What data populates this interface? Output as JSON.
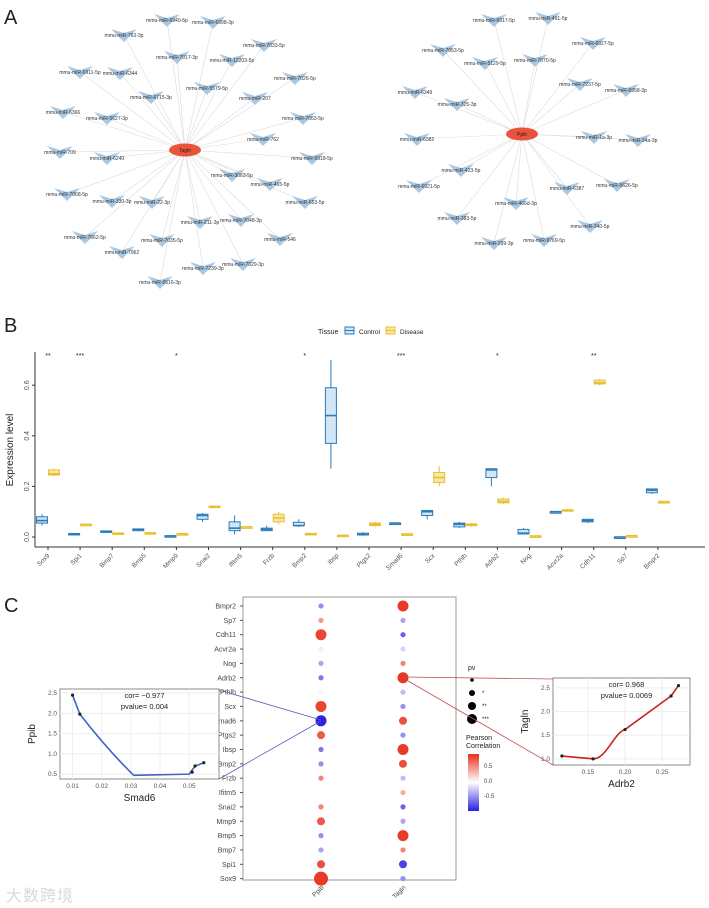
{
  "panels": {
    "a": "A",
    "b": "B",
    "c": "C"
  },
  "watermark": "大数跨境",
  "network_left": {
    "center": "Tagln",
    "targets": [
      "mmu-miR-6940-5p",
      "mmu-miR-6998-3p",
      "mmu-miR-763-3p",
      "mmu-miR-7017-3p",
      "mmu-miR-7033-5p",
      "mmu-miR-12203-5p",
      "mmu-miR-6911-5p",
      "mmu-miR-6344",
      "mmu-miR-7026-5p",
      "mmu-miR-5579-5p",
      "mmu-miR-6715-3p",
      "mmu-miR-207",
      "mmu-miR-6366",
      "mmu-miR-5627-3p",
      "mmu-miR-7063-5p",
      "mmu-miR-762",
      "mmu-miR-709",
      "mmu-miR-6240",
      "mmu-miR-6918-5p",
      "mmu-miR-3063-5p",
      "mmu-miR-465-5p",
      "mmu-miR-7068-5p",
      "mmu-miR-330-3p",
      "mmu-miR-22-3p",
      "mmu-miR-653-5p",
      "mmu-miR-211-3p",
      "mmu-miR-7048-3p",
      "mmu-miR-7662-5p",
      "mmu-miR-7035-5p",
      "mmu-miR-546",
      "mmu-miR-7962",
      "mmu-miR-7239-3p",
      "mmu-miR-7029-3p",
      "mmu-miR-6516-3p"
    ]
  },
  "network_right": {
    "center": "Ppib",
    "targets": [
      "mmu-miR-6917-5p",
      "mmu-miR-491-5p",
      "mmu-miR-7063-5p",
      "mmu-miR-5129-5p",
      "mmu-miR-7070-5p",
      "mmu-miR-6927-5p",
      "mmu-miR-6349",
      "mmu-miR-7237-5p",
      "mmu-miR-6958-3p",
      "mmu-miR-325-3p",
      "mmu-miR-6382",
      "mmu-miR-1a-3p",
      "mmu-miR-34a-3p",
      "mmu-miR-423-5p",
      "mmu-miR-6921-5p",
      "mmu-miR-6387",
      "mmu-miR-5626-5p",
      "mmu-miR-466d-3p",
      "mmu-miR-383-5p",
      "mmu-miR-340-5p",
      "mmu-miR-299-3p",
      "mmu-miR-9769-5p"
    ]
  },
  "colors": {
    "node": "#a9c8e3",
    "hub": "#e8533a",
    "control": "#2b7bb9",
    "control_fill": "#d2e6f5",
    "disease": "#e8c02e",
    "disease_fill": "#f7e6a8",
    "neg": "#2a1fe0",
    "pos": "#e8301c"
  },
  "chart_data": [
    {
      "type": "box",
      "title": "",
      "ylabel": "Expression level",
      "ylim": [
        0,
        0.72
      ],
      "yticks": [
        "0.0",
        "0.2",
        "0.4",
        "0.6"
      ],
      "legend": {
        "title": "Tissue",
        "entries": [
          "Control",
          "Disease"
        ],
        "placement": "top-center"
      },
      "categories": [
        "Sox9",
        "Spi1",
        "Bmp7",
        "Bmp5",
        "Mmp9",
        "Snai2",
        "Ifitm5",
        "Frzb",
        "Bmp2",
        "Ibsp",
        "Ptgs2",
        "Smad6",
        "Scx",
        "Pthlh",
        "Adrb2",
        "Nog",
        "Acvr2a",
        "Cdh11",
        "Sp7",
        "Bmpr2"
      ],
      "significance": [
        "**",
        "***",
        "",
        "",
        "*",
        "",
        "",
        "",
        "*",
        "",
        "",
        "***",
        "",
        "",
        "*",
        "",
        "",
        "**",
        "",
        ""
      ],
      "series": [
        {
          "name": "Control",
          "stats_min_q1_med_q3_max": [
            [
              0.045,
              0.055,
              0.065,
              0.08,
              0.09
            ],
            [
              0.01,
              0.01,
              0.012,
              0.014,
              0.015
            ],
            [
              0.02,
              0.02,
              0.022,
              0.024,
              0.025
            ],
            [
              0.022,
              0.025,
              0.03,
              0.032,
              0.034
            ],
            [
              0.003,
              0.003,
              0.004,
              0.005,
              0.005
            ],
            [
              0.06,
              0.07,
              0.085,
              0.09,
              0.095
            ],
            [
              0.01,
              0.025,
              0.035,
              0.06,
              0.085
            ],
            [
              0.025,
              0.025,
              0.03,
              0.035,
              0.045
            ],
            [
              0.04,
              0.045,
              0.045,
              0.058,
              0.07
            ],
            [
              0.27,
              0.37,
              0.48,
              0.59,
              0.7
            ],
            [
              0.005,
              0.008,
              0.01,
              0.015,
              0.02
            ],
            [
              0.055,
              0.055,
              0.055,
              0.055,
              0.055
            ],
            [
              0.07,
              0.085,
              0.1,
              0.105,
              0.105
            ],
            [
              0.035,
              0.04,
              0.05,
              0.055,
              0.06
            ],
            [
              0.2,
              0.235,
              0.265,
              0.27,
              0.27
            ],
            [
              0.01,
              0.012,
              0.015,
              0.03,
              0.035
            ],
            [
              0.1,
              0.1,
              0.1,
              0.1,
              0.1
            ],
            [
              0.055,
              0.06,
              0.065,
              0.07,
              0.07
            ],
            [
              0.0,
              0.0,
              0.0,
              0.0,
              0.0
            ],
            [
              0.17,
              0.175,
              0.185,
              0.19,
              0.19
            ]
          ]
        },
        {
          "name": "Disease",
          "stats_min_q1_med_q3_max": [
            [
              0.24,
              0.245,
              0.25,
              0.265,
              0.27
            ],
            [
              0.05,
              0.05,
              0.05,
              0.05,
              0.05
            ],
            [
              0.012,
              0.012,
              0.014,
              0.016,
              0.016
            ],
            [
              0.015,
              0.015,
              0.016,
              0.017,
              0.017
            ],
            [
              0.013,
              0.013,
              0.013,
              0.013,
              0.013
            ],
            [
              0.118,
              0.118,
              0.12,
              0.122,
              0.122
            ],
            [
              0.04,
              0.04,
              0.04,
              0.04,
              0.04
            ],
            [
              0.05,
              0.06,
              0.075,
              0.09,
              0.1
            ],
            [
              0.012,
              0.012,
              0.013,
              0.014,
              0.014
            ],
            [
              0.005,
              0.005,
              0.006,
              0.007,
              0.007
            ],
            [
              0.04,
              0.045,
              0.05,
              0.055,
              0.06
            ],
            [
              0.012,
              0.012,
              0.012,
              0.012,
              0.012
            ],
            [
              0.2,
              0.215,
              0.235,
              0.255,
              0.28
            ],
            [
              0.04,
              0.045,
              0.048,
              0.052,
              0.055
            ],
            [
              0.13,
              0.135,
              0.14,
              0.15,
              0.155
            ],
            [
              0.004,
              0.004,
              0.004,
              0.004,
              0.004
            ],
            [
              0.1,
              0.103,
              0.105,
              0.108,
              0.11
            ],
            [
              0.6,
              0.605,
              0.61,
              0.62,
              0.625
            ],
            [
              0.005,
              0.005,
              0.005,
              0.005,
              0.005
            ],
            [
              0.14,
              0.14,
              0.14,
              0.14,
              0.14
            ]
          ]
        }
      ]
    },
    {
      "type": "dot",
      "genes": [
        "Bmpr2",
        "Sp7",
        "Cdh11",
        "Acvr2a",
        "Nog",
        "Adrb2",
        "Pthlh",
        "Scx",
        "Smad6",
        "Ptgs2",
        "Ibsp",
        "Bmp2",
        "Frzb",
        "Ifitm5",
        "Snai2",
        "Mmp9",
        "Bmp5",
        "Bmp7",
        "Spi1",
        "Sox9"
      ],
      "columns": [
        "Ppib",
        "Tagln"
      ],
      "correlation": [
        [
          -0.5,
          0.5,
          0.9,
          0.1,
          -0.4,
          -0.6,
          0.05,
          0.9,
          -0.98,
          0.8,
          -0.6,
          -0.5,
          0.6,
          0.0,
          0.6,
          0.8,
          -0.5,
          -0.4,
          0.85,
          0.95
        ],
        [
          0.95,
          -0.4,
          -0.7,
          -0.2,
          0.6,
          0.97,
          -0.3,
          -0.5,
          0.85,
          -0.5,
          0.95,
          0.85,
          -0.3,
          0.4,
          -0.7,
          -0.4,
          0.95,
          0.6,
          -0.85,
          -0.5
        ]
      ],
      "pv_level": [
        [
          0,
          0,
          2,
          0,
          0,
          0,
          0,
          2,
          2,
          1,
          0,
          0,
          0,
          0,
          0,
          1,
          0,
          0,
          1,
          3
        ],
        [
          2,
          0,
          0,
          0,
          0,
          2,
          0,
          0,
          1,
          0,
          2,
          1,
          0,
          0,
          0,
          0,
          2,
          0,
          1,
          0
        ]
      ],
      "legend_pv": {
        "title": "pv",
        "labels": [
          "",
          "*",
          "**",
          "***"
        ]
      },
      "legend_color": {
        "title_line1": "Pearson",
        "title_line2": "Correlation",
        "ticks": [
          "0.5",
          "0.0",
          "-0.5"
        ]
      }
    },
    {
      "type": "line",
      "xlabel": "Smad6",
      "ylabel": "Ppib",
      "annotation": [
        "cor= −0.977",
        "pvalue= 0.004"
      ],
      "x": [
        0.01,
        0.0125,
        0.051,
        0.052,
        0.055
      ],
      "y": [
        2.45,
        1.98,
        0.55,
        0.7,
        0.78
      ],
      "xticks": [
        "0.01",
        "0.02",
        "0.03",
        "0.04",
        "0.05"
      ],
      "yticks": [
        "0.5",
        "1.0",
        "1.5",
        "2.0",
        "2.5"
      ]
    },
    {
      "type": "line",
      "xlabel": "Adrb2",
      "ylabel": "Tagln",
      "annotation": [
        "cor= 0.968",
        "pvalue= 0.0069"
      ],
      "x": [
        0.115,
        0.157,
        0.2,
        0.262,
        0.272
      ],
      "y": [
        1.06,
        1.0,
        1.62,
        2.33,
        2.55
      ],
      "xticks": [
        "0.15",
        "0.20",
        "0.25"
      ],
      "yticks": [
        "1.0",
        "1.5",
        "2.0",
        "2.5"
      ]
    }
  ]
}
